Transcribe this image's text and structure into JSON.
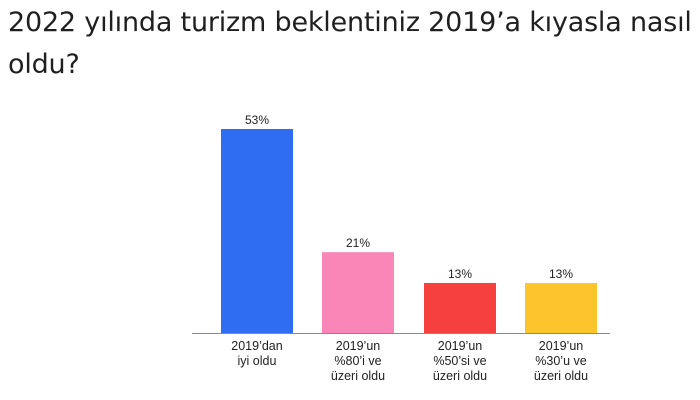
{
  "title": "2022 yılında turizm beklentiniz 2019’a kıyasla nasıl oldu?",
  "chart_data": {
    "type": "bar",
    "title": "2022 yılında turizm beklentiniz 2019’a kıyasla nasıl oldu?",
    "xlabel": "",
    "ylabel": "",
    "categories": [
      [
        "2019’dan",
        "iyi oldu"
      ],
      [
        "2019’un",
        "%80’i ve",
        "üzeri oldu"
      ],
      [
        "2019’un",
        "%50’si ve",
        "üzeri oldu"
      ],
      [
        "2019’un",
        "%30’u ve",
        "üzeri oldu"
      ]
    ],
    "values": [
      53,
      21,
      13,
      13
    ],
    "value_labels": [
      "53%",
      "21%",
      "13%",
      "13%"
    ],
    "colors": [
      "#2f6ef2",
      "#f986b6",
      "#f5403d",
      "#fdc52c"
    ],
    "ylim": [
      0,
      53
    ],
    "grid": false,
    "legend": "none"
  }
}
